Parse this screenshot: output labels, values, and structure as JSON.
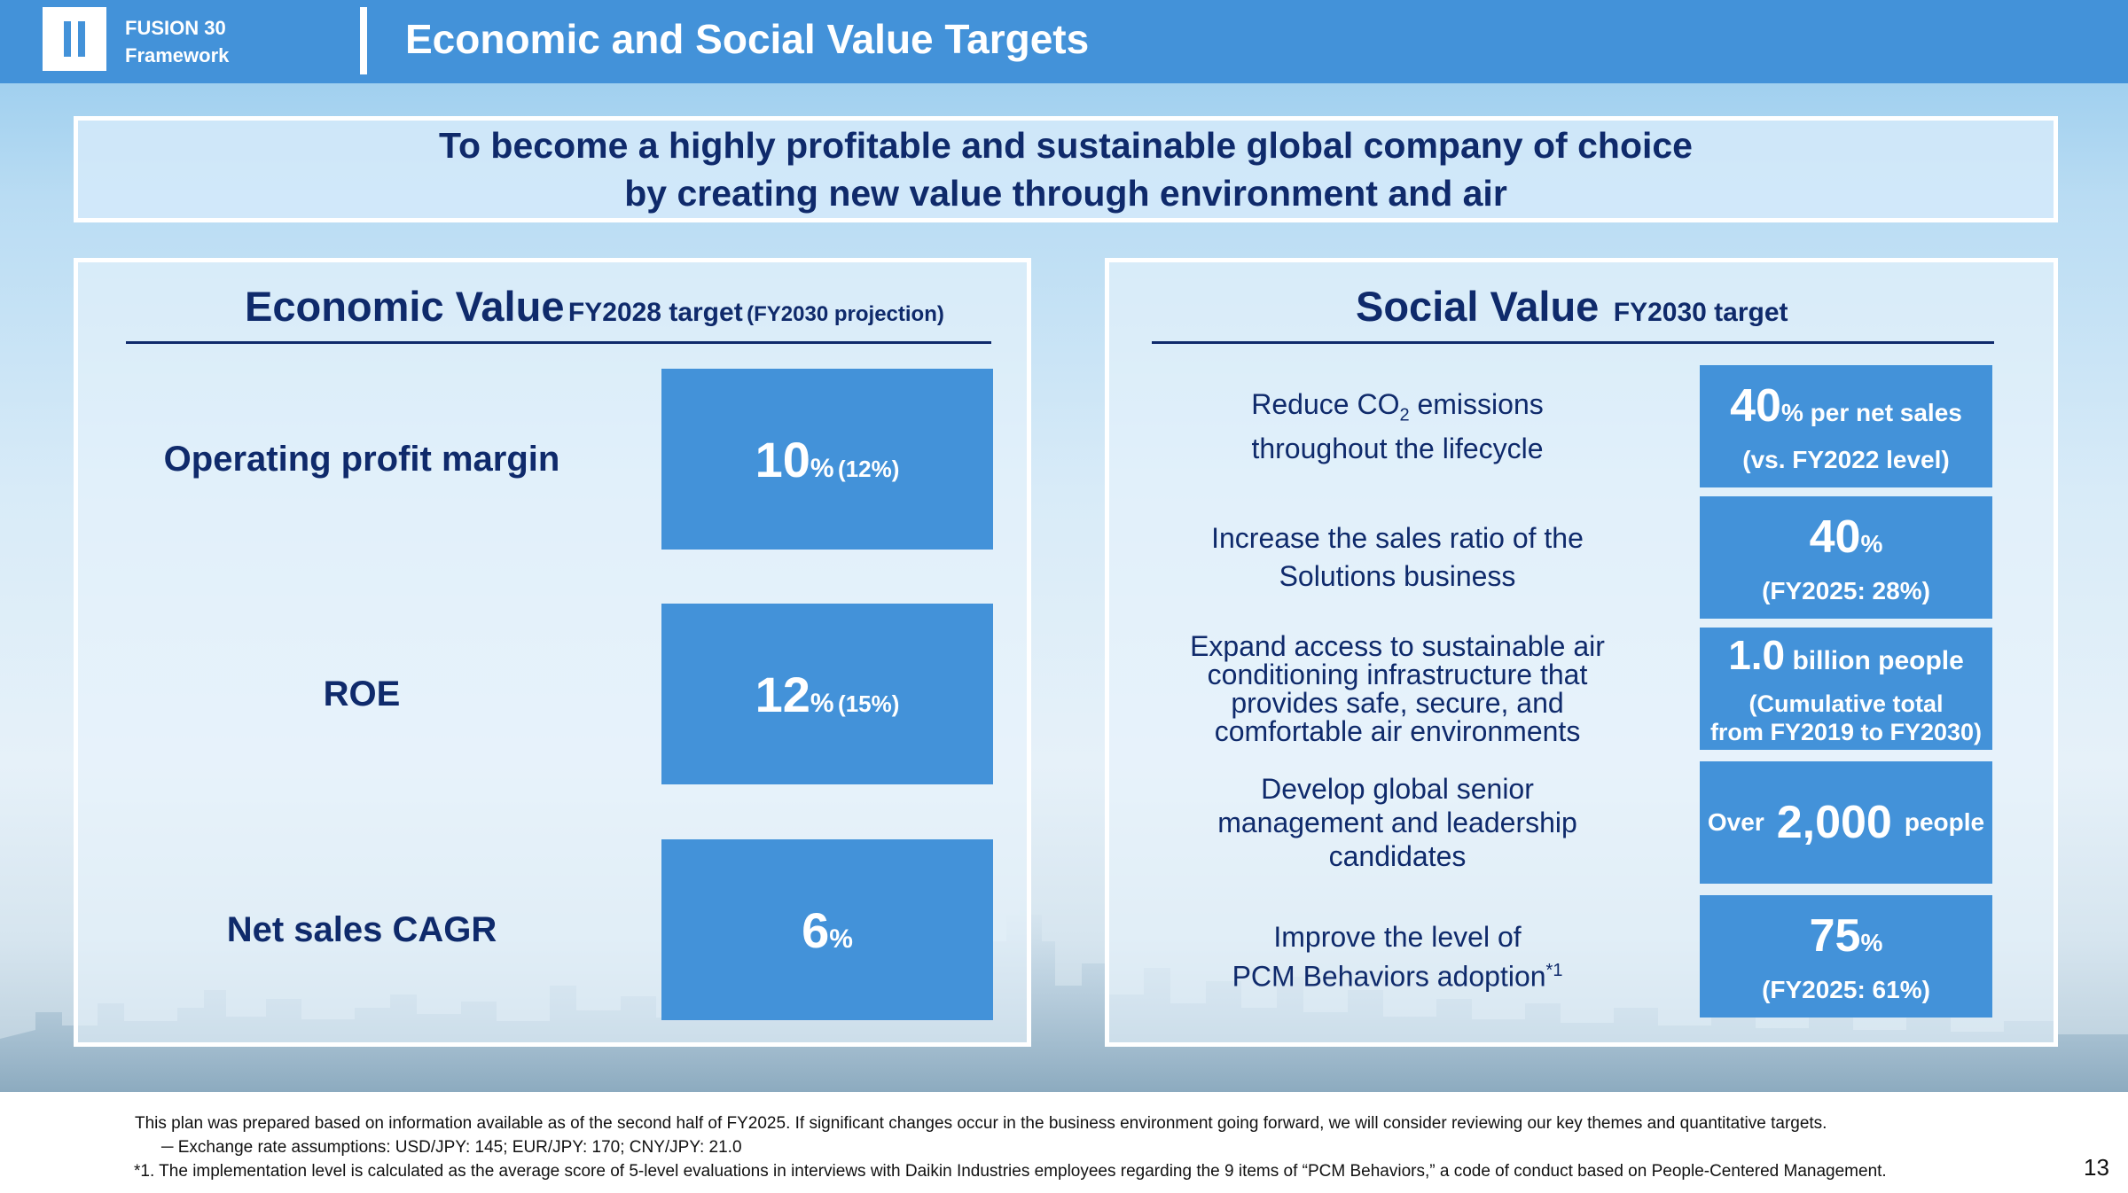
{
  "header": {
    "section_icon": "roman-numeral-two-icon",
    "framework_line1": "FUSION 30",
    "framework_line2": "Framework",
    "title": "Economic and Social Value Targets"
  },
  "mission": {
    "line1": "To become a highly profitable and sustainable global company of choice",
    "line2": "by creating new value through environment and air"
  },
  "economic": {
    "title": "Economic Value",
    "subtitle": "FY2028 target",
    "subtitle_note": "(FY2030 projection)",
    "rows": [
      {
        "label": "Operating profit margin",
        "value": "10",
        "unit": "%",
        "projection": "(12%)"
      },
      {
        "label": "ROE",
        "value": "12",
        "unit": "%",
        "projection": "(15%)"
      },
      {
        "label": "Net sales CAGR",
        "value": "6",
        "unit": "%",
        "projection": ""
      }
    ]
  },
  "social": {
    "title": "Social Value",
    "subtitle": "FY2030 target",
    "rows": [
      {
        "label_parts": [
          "Reduce CO",
          "2",
          " emissions"
        ],
        "label_line2": "throughout the lifecycle",
        "value": "40",
        "unit": "% per net sales",
        "note": "(vs. FY2022 level)"
      },
      {
        "label_line1": "Increase the sales ratio of the",
        "label_line2": "Solutions business",
        "value": "40",
        "unit": "%",
        "note": "(FY2025: 28%)"
      },
      {
        "label_lines": [
          "Expand access to sustainable air",
          "conditioning infrastructure that",
          "provides safe, secure, and",
          "comfortable air environments"
        ],
        "value": "1.0",
        "unit": " billion people",
        "note_lines": [
          "(Cumulative total",
          "from FY2019 to FY2030)"
        ]
      },
      {
        "label_lines": [
          "Develop global senior",
          "management and leadership",
          "candidates"
        ],
        "prefix": "Over",
        "value": "2,000",
        "unit": "people"
      },
      {
        "label_line1": "Improve the level of",
        "label_line2": "PCM Behaviors adoption",
        "label_sup": "*1",
        "value": "75",
        "unit": "%",
        "note": "(FY2025: 61%)"
      }
    ]
  },
  "footnotes": {
    "line1": "This plan was prepared based on information available as of the second half of FY2025. If significant changes occur in the business environment going forward, we will consider reviewing our key themes and quantitative targets.",
    "line2": "─ Exchange rate assumptions: USD/JPY: 145; EUR/JPY: 170; CNY/JPY: 21.0",
    "line3": "*1. The implementation level is calculated as the average score of 5-level evaluations in interviews with Daikin Industries employees regarding the 9 items of “PCM Behaviors,” a code of conduct based on People-Centered Management."
  },
  "page_number": "13",
  "colors": {
    "header_blue": "#4392d9",
    "value_box_blue": "#4392d9",
    "navy_text": "#0f2a6b"
  }
}
